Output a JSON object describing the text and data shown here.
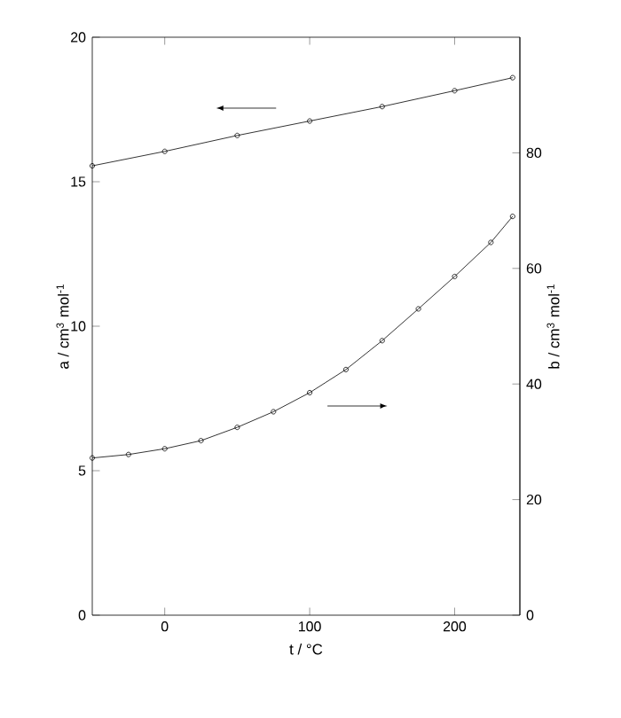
{
  "chart_data": {
    "type": "line",
    "xlabel": "t / °C",
    "ylabel": "a / cm$^{3}$ mol$^{-1}$",
    "y2label": "b / cm$^{3}$ mol$^{-1}$",
    "xlim": [
      -50,
      245
    ],
    "xticks": [
      0,
      100,
      200
    ],
    "ylim": [
      0,
      20
    ],
    "yticks": [
      0,
      5,
      10,
      15,
      20
    ],
    "y2lim": [
      0,
      100
    ],
    "y2ticks": [
      0,
      20,
      40,
      60,
      80
    ],
    "marker": "circle",
    "line_style": "solid",
    "series": [
      {
        "color": "#000000",
        "x": [
          -50,
          0,
          50,
          100,
          150,
          200,
          240
        ],
        "values": [
          15.55,
          16.05,
          16.6,
          17.1,
          17.6,
          18.15,
          18.6
        ]
      },
      {
        "color": "#000000",
        "axis": "y2",
        "x": [
          -50,
          -25,
          0,
          25,
          50,
          75,
          100,
          125,
          150,
          175,
          200,
          225,
          240
        ],
        "values": [
          27.2,
          27.8,
          28.8,
          30.2,
          32.5,
          35.2,
          38.5,
          42.5,
          47.5,
          53,
          58.6,
          64.5,
          69
        ]
      }
    ]
  }
}
